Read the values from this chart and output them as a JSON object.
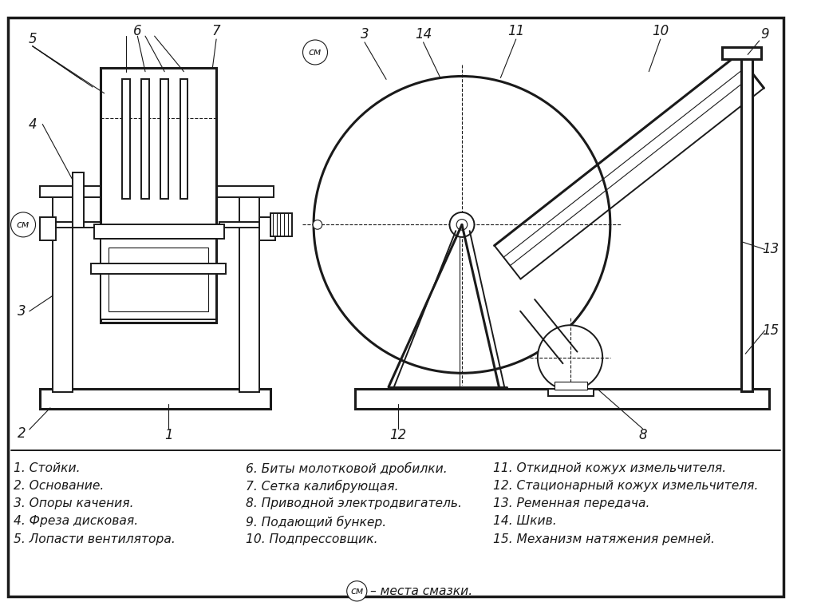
{
  "bg_color": "#ffffff",
  "line_color": "#1a1a1a",
  "legend_items": [
    "1. Стойки.",
    "2. Основание.",
    "3. Опоры качения.",
    "4. Фреза дисковая.",
    "5. Лопасти вентилятора.",
    "6. Биты молотковой дробилки.",
    "7. Сетка калибрующая.",
    "8. Приводной электродвигатель.",
    "9. Подающий бункер.",
    "10. Подпрессовщик.",
    "11. Откидной кожух измельчителя.",
    "12. Стационарный кожух измельчителя.",
    "13. Ременная передача.",
    "14. Шкив.",
    "15. Механизм натяжения ремней."
  ],
  "sm_label": "см",
  "sm_note": "– места смазки."
}
